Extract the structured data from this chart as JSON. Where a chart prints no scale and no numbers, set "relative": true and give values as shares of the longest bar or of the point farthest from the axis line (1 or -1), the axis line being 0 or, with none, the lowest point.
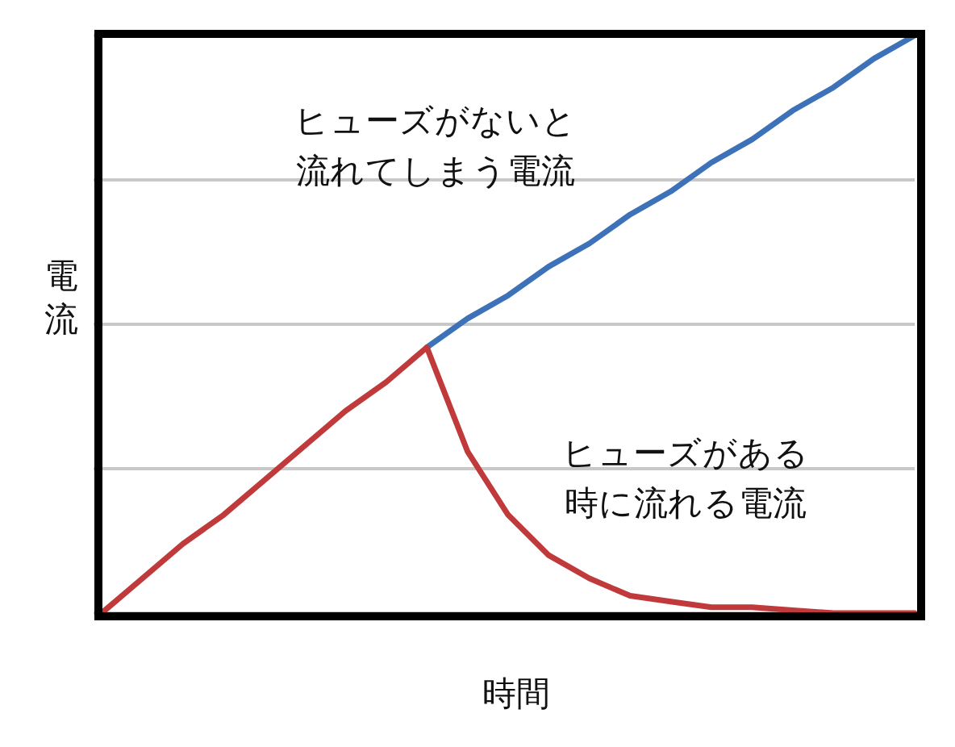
{
  "chart_data": {
    "type": "line",
    "relative": true,
    "xlabel": "時間",
    "ylabel": "電流",
    "grid": "y",
    "categories": [
      null,
      null,
      null,
      null,
      null,
      null,
      null,
      null,
      null,
      null,
      null,
      null,
      null,
      null,
      null,
      null,
      null,
      null,
      null,
      null,
      null
    ],
    "series": [
      {
        "name": "ヒューズがないと流れてしまう電流",
        "color": "#3d72b8",
        "values": [
          null,
          null,
          null,
          null,
          null,
          null,
          null,
          null,
          0.46,
          0.51,
          0.55,
          0.6,
          0.64,
          0.69,
          0.73,
          0.78,
          0.82,
          0.87,
          0.91,
          0.96,
          1.0
        ]
      },
      {
        "name": "ヒューズがある時に流れる電流",
        "color": "#c0393b",
        "values": [
          0,
          0.06,
          0.12,
          0.17,
          0.23,
          0.29,
          0.35,
          0.4,
          0.46,
          0.28,
          0.17,
          0.1,
          0.06,
          0.03,
          0.02,
          0.01,
          0.01,
          0.005,
          0,
          0,
          0
        ]
      }
    ]
  }
}
